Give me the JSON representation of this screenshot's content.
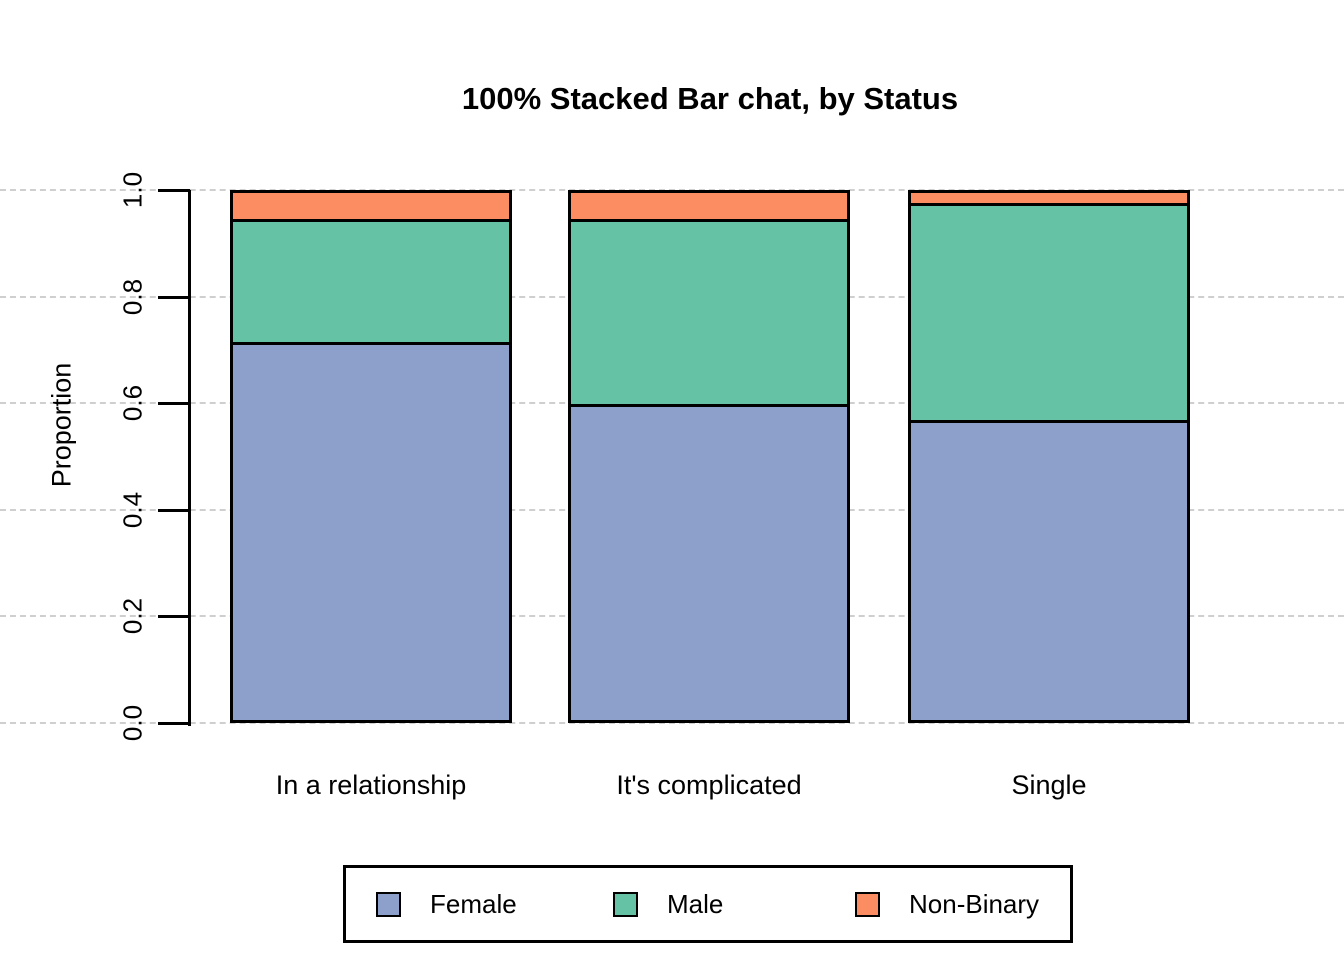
{
  "title": "100% Stacked Bar chat, by Status",
  "y_axis": {
    "label": "Proportion",
    "tick_labels": [
      "0.0",
      "0.2",
      "0.4",
      "0.6",
      "0.8",
      "1.0"
    ]
  },
  "x_axis": {
    "categories": [
      "In a relationship",
      "It's complicated",
      "Single"
    ]
  },
  "legend": {
    "entries": [
      {
        "label": "Female",
        "color": "#8DA0CB"
      },
      {
        "label": "Male",
        "color": "#66C2A5"
      },
      {
        "label": "Non-Binary",
        "color": "#FC8D62"
      }
    ]
  },
  "colors": {
    "background": "#FFFFFF",
    "axis": "#000000",
    "text": "#000000",
    "gridline": "#CFCFCF",
    "female": "#8DA0CB",
    "male": "#66C2A5",
    "non_binary": "#FC8D62"
  },
  "chart_data": {
    "type": "bar",
    "stacked": true,
    "normalized_100_percent": true,
    "title": "100% Stacked Bar chat, by Status",
    "xlabel": "",
    "ylabel": "Proportion",
    "ylim": [
      0.0,
      1.0
    ],
    "y_ticks": [
      0.0,
      0.2,
      0.4,
      0.6,
      0.8,
      1.0
    ],
    "grid": "horizontal dashed light-gray at each y tick, full width",
    "legend_position": "bottom center, boxed, horizontal",
    "categories": [
      "In a relationship",
      "It's complicated",
      "Single"
    ],
    "series": [
      {
        "name": "Female",
        "color": "#8DA0CB",
        "values": [
          0.72,
          0.6,
          0.57
        ]
      },
      {
        "name": "Male",
        "color": "#66C2A5",
        "values": [
          0.23,
          0.35,
          0.41
        ]
      },
      {
        "name": "Non-Binary",
        "color": "#FC8D62",
        "values": [
          0.05,
          0.05,
          0.02
        ]
      }
    ],
    "stack_order_bottom_to_top": [
      "Female",
      "Male",
      "Non-Binary"
    ]
  }
}
